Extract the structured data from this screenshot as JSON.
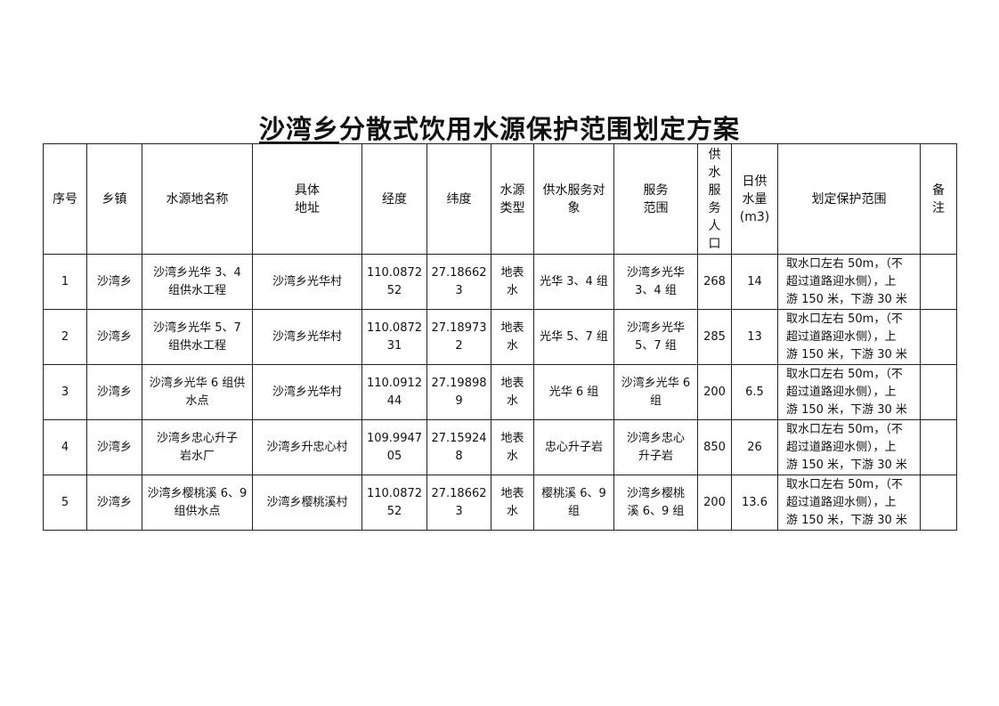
{
  "title": {
    "underlined": "沙湾乡",
    "rest": "分散式饮用水源保护范围划定方案"
  },
  "headers": [
    "序号",
    "乡镇",
    "水源地名称",
    "具体\n地址",
    "经度",
    "纬度",
    "水源\n类型",
    "供水服务对\n象",
    "服务\n范围",
    "供\n水\n服\n务\n人\n口",
    "日供\n水量\n(m3)",
    "划定保护范围",
    "备\n注"
  ],
  "rows": [
    [
      "1",
      "沙湾乡",
      "沙湾乡光华 3、4\n组供水工程",
      "沙湾乡光华村",
      "110.0872\n52",
      "27.18662\n3",
      "地表\n水",
      "光华 3、4 组",
      "沙湾乡光华\n3、4 组",
      "268",
      "14",
      "取水口左右 50m，（不\n超过道路迎水侧），上\n游 150 米，下游 30 米",
      ""
    ],
    [
      "2",
      "沙湾乡",
      "沙湾乡光华 5、7\n组供水工程",
      "沙湾乡光华村",
      "110.0872\n31",
      "27.18973\n2",
      "地表\n水",
      "光华 5、7 组",
      "沙湾乡光华\n5、7 组",
      "285",
      "13",
      "取水口左右 50m，（不\n超过道路迎水侧），上\n游 150 米，下游 30 米",
      ""
    ],
    [
      "3",
      "沙湾乡",
      "沙湾乡光华 6 组供\n水点",
      "沙湾乡光华村",
      "110.0912\n44",
      "27.19898\n9",
      "地表\n水",
      "光华 6 组",
      "沙湾乡光华 6\n组",
      "200",
      "6.5",
      "取水口左右 50m，（不\n超过道路迎水侧），上\n游 150 米，下游 30 米",
      ""
    ],
    [
      "4",
      "沙湾乡",
      "沙湾乡忠心升子\n岩水厂",
      "沙湾乡升忠心村",
      "109.9947\n05",
      "27.15924\n8",
      "地表\n水",
      "忠心升子岩",
      "沙湾乡忠心\n升子岩",
      "850",
      "26",
      "取水口左右 50m，（不\n超过道路迎水侧），上\n游 150 米，下游 30 米",
      ""
    ],
    [
      "5",
      "沙湾乡",
      "沙湾乡樱桃溪 6、9\n组供水点",
      "沙湾乡樱桃溪村",
      "110.0872\n52",
      "27.18662\n3",
      "地表\n水",
      "樱桃溪 6、9\n组",
      "沙湾乡樱桃\n溪 6、9 组",
      "200",
      "13.6",
      "取水口左右 50m，（不\n超过道路迎水侧），上\n游 150 米，下游 30 米",
      ""
    ]
  ]
}
